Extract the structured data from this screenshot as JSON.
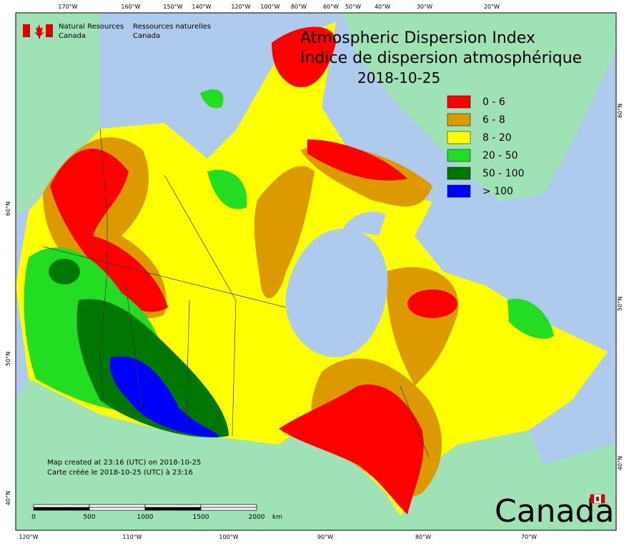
{
  "header": {
    "agency_en": "Natural Resources",
    "agency_en_country": "Canada",
    "agency_fr": "Ressources naturelles",
    "agency_fr_country": "Canada"
  },
  "title": {
    "en": "Atmospheric Dispersion Index",
    "fr": "Indice de dispersion atmosphérique",
    "date": "2018-10-25"
  },
  "legend": [
    {
      "label": "0 - 6",
      "color": "#ff0000"
    },
    {
      "label": "6 - 8",
      "color": "#dd9900"
    },
    {
      "label": "8 - 20",
      "color": "#ffff00"
    },
    {
      "label": "20 - 50",
      "color": "#22dd22"
    },
    {
      "label": "50 - 100",
      "color": "#007700"
    },
    {
      "label": "> 100",
      "color": "#0000ff"
    }
  ],
  "top_longitudes": [
    "170°W",
    "160°W",
    "150°W",
    "140°W",
    "120°W",
    "100°W",
    "80°W",
    "60°W",
    "50°W",
    "40°W",
    "30°W",
    "20°W"
  ],
  "bottom_longitudes": [
    "120°W",
    "110°W",
    "100°W",
    "90°W",
    "80°W",
    "70°W"
  ],
  "left_latitudes": [
    "60°N",
    "50°N",
    "40°N"
  ],
  "right_latitudes": [
    "60°N",
    "50°N",
    "40°N"
  ],
  "credits": {
    "en": "Map created at 23:16 (UTC) on 2018-10-25",
    "fr": "Carte créée le 2018-10-25 (UTC) à 23:16"
  },
  "scale": {
    "labels": [
      "0",
      "500",
      "1000",
      "1500",
      "2000"
    ],
    "unit": "km"
  },
  "wordmark": "Canada"
}
